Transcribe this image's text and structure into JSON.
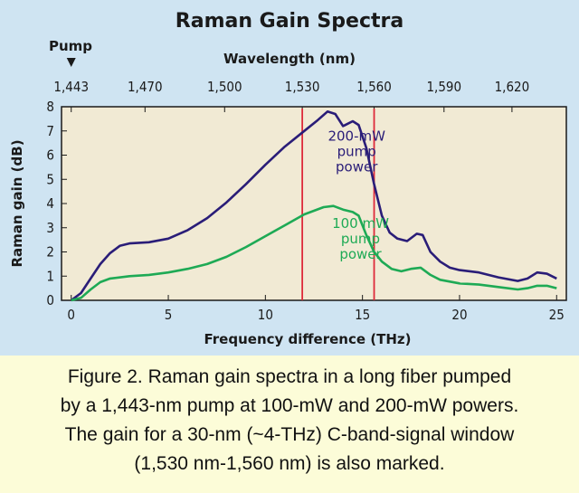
{
  "caption": {
    "lines": [
      "Figure 2. Raman gain spectra in a long fiber pumped",
      "by a 1,443-nm pump at 100-mW and 200-mW powers.",
      "The gain for a 30-nm (~4-THz) C-band-signal window",
      "(1,530 nm-1,560 nm) is also marked."
    ]
  },
  "colors": {
    "background": "#cfe4f2",
    "plot_area": "#f1ead4",
    "series_200": "#2a1d78",
    "series_100": "#1eaa55",
    "window_lines": "#dd2a3a",
    "caption_bg": "#fcfcd8"
  },
  "chart_data": {
    "type": "line",
    "title": "Raman Gain Spectra",
    "xlabel": "Frequency difference (THz)",
    "ylabel": "Raman gain (dB)",
    "top_axis_label": "Wavelength (nm)",
    "top_axis_ticks": [
      "1,443",
      "1,470",
      "1,500",
      "1,530",
      "1,560",
      "1,590",
      "1,620"
    ],
    "top_axis_tick_freq": [
      0,
      3.8,
      7.9,
      11.9,
      15.6,
      19.2,
      22.7
    ],
    "pump_label": "Pump",
    "xlim": [
      -0.5,
      25.5
    ],
    "ylim": [
      0,
      8
    ],
    "xticks": [
      0,
      5,
      10,
      15,
      20,
      25
    ],
    "yticks": [
      0,
      1,
      2,
      3,
      4,
      5,
      6,
      7,
      8
    ],
    "grid": false,
    "window_markers": [
      11.9,
      15.6
    ],
    "series": [
      {
        "name": "200-mW pump power",
        "label_lines": [
          "200-mW",
          "pump",
          "power"
        ],
        "label_at": [
          14.7,
          6.6
        ],
        "points": [
          [
            0,
            0
          ],
          [
            0.5,
            0.3
          ],
          [
            1,
            0.9
          ],
          [
            1.5,
            1.5
          ],
          [
            2,
            1.95
          ],
          [
            2.5,
            2.25
          ],
          [
            3,
            2.35
          ],
          [
            4,
            2.4
          ],
          [
            5,
            2.55
          ],
          [
            6,
            2.9
          ],
          [
            7,
            3.4
          ],
          [
            8,
            4.05
          ],
          [
            9,
            4.8
          ],
          [
            10,
            5.6
          ],
          [
            11,
            6.35
          ],
          [
            12,
            7.0
          ],
          [
            12.7,
            7.45
          ],
          [
            13.2,
            7.8
          ],
          [
            13.6,
            7.7
          ],
          [
            14,
            7.2
          ],
          [
            14.5,
            7.4
          ],
          [
            14.8,
            7.25
          ],
          [
            15.2,
            6.3
          ],
          [
            15.6,
            4.8
          ],
          [
            16,
            3.5
          ],
          [
            16.4,
            2.8
          ],
          [
            16.8,
            2.55
          ],
          [
            17.3,
            2.45
          ],
          [
            17.8,
            2.75
          ],
          [
            18.1,
            2.7
          ],
          [
            18.5,
            2.0
          ],
          [
            19,
            1.6
          ],
          [
            19.5,
            1.35
          ],
          [
            20,
            1.25
          ],
          [
            21,
            1.15
          ],
          [
            22,
            0.95
          ],
          [
            23,
            0.8
          ],
          [
            23.5,
            0.9
          ],
          [
            24,
            1.15
          ],
          [
            24.5,
            1.1
          ],
          [
            25,
            0.9
          ]
        ]
      },
      {
        "name": "100 mW pump power",
        "label_lines": [
          "100 mW",
          "pump",
          "power"
        ],
        "label_at": [
          14.9,
          3.0
        ],
        "points": [
          [
            0,
            0
          ],
          [
            0.5,
            0.1
          ],
          [
            1,
            0.45
          ],
          [
            1.5,
            0.75
          ],
          [
            2,
            0.9
          ],
          [
            3,
            1.0
          ],
          [
            4,
            1.05
          ],
          [
            5,
            1.15
          ],
          [
            6,
            1.3
          ],
          [
            7,
            1.5
          ],
          [
            8,
            1.8
          ],
          [
            9,
            2.2
          ],
          [
            10,
            2.65
          ],
          [
            11,
            3.1
          ],
          [
            12,
            3.55
          ],
          [
            13,
            3.85
          ],
          [
            13.5,
            3.9
          ],
          [
            14,
            3.75
          ],
          [
            14.5,
            3.65
          ],
          [
            14.8,
            3.5
          ],
          [
            15.2,
            2.7
          ],
          [
            15.6,
            2.0
          ],
          [
            16,
            1.6
          ],
          [
            16.5,
            1.3
          ],
          [
            17,
            1.2
          ],
          [
            17.5,
            1.3
          ],
          [
            18,
            1.35
          ],
          [
            18.5,
            1.05
          ],
          [
            19,
            0.85
          ],
          [
            20,
            0.7
          ],
          [
            21,
            0.65
          ],
          [
            22,
            0.55
          ],
          [
            23,
            0.45
          ],
          [
            23.5,
            0.5
          ],
          [
            24,
            0.6
          ],
          [
            24.5,
            0.6
          ],
          [
            25,
            0.5
          ]
        ]
      }
    ]
  }
}
